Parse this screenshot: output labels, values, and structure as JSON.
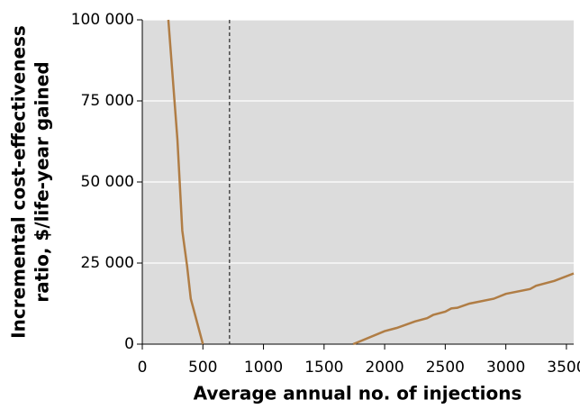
{
  "chart_data": {
    "type": "line",
    "xlabel": "Average annual no. of injections",
    "ylabel": [
      "Incremental cost-effectiveness",
      "ratio, $/life-year gained"
    ],
    "xlim": [
      0,
      3560
    ],
    "ylim": [
      0,
      100000
    ],
    "xticks": [
      0,
      500,
      1000,
      1500,
      2000,
      2500,
      3000,
      3500
    ],
    "yticks": [
      0,
      {
        "value": 25000,
        "label": "25 000"
      },
      {
        "value": 50000,
        "label": "50 000"
      },
      {
        "value": 75000,
        "label": "75 000"
      },
      {
        "value": 100000,
        "label": "100 000"
      }
    ],
    "grid": true,
    "vline": 720,
    "series": [
      {
        "color": "#b07d45",
        "x": [
          215,
          290,
          330,
          370,
          400,
          500
        ],
        "values": [
          100000,
          63000,
          35000,
          24000,
          14000,
          0
        ]
      },
      {
        "color": "#b07d45",
        "x": [
          1740,
          2000,
          2100,
          2250,
          2350,
          2400,
          2500,
          2550,
          2600,
          2700,
          2900,
          3000,
          3200,
          3250,
          3400,
          3560
        ],
        "values": [
          0,
          4000,
          5000,
          7000,
          8000,
          9000,
          10000,
          11000,
          11200,
          12500,
          14000,
          15500,
          17000,
          18000,
          19500,
          21800
        ]
      }
    ]
  }
}
